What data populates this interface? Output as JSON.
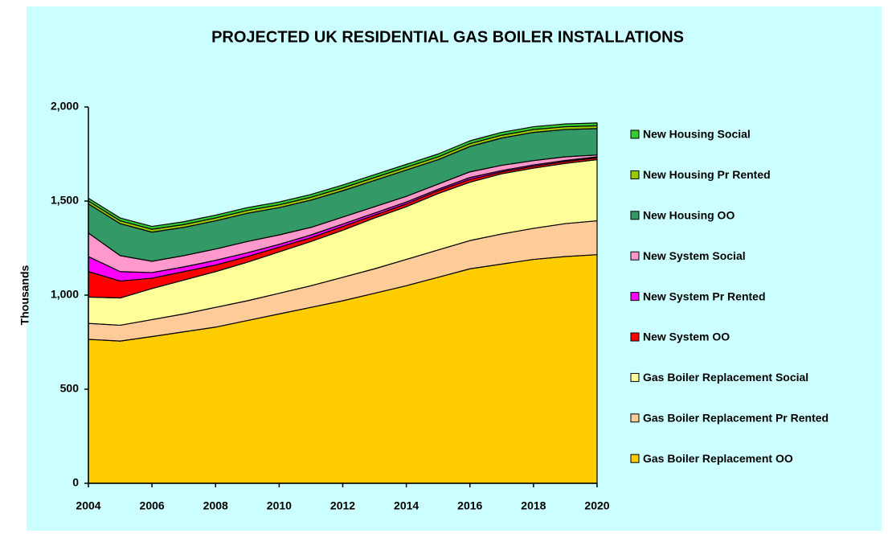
{
  "chart_data": {
    "type": "stacked_area",
    "title": "PROJECTED UK RESIDENTIAL GAS  BOILER INSTALLATIONS",
    "y_label": "Thousands",
    "x": [
      2004,
      2005,
      2006,
      2007,
      2008,
      2009,
      2010,
      2011,
      2012,
      2013,
      2014,
      2015,
      2016,
      2017,
      2018,
      2019,
      2020
    ],
    "xlim": [
      2004,
      2020
    ],
    "xticks": [
      2004,
      2006,
      2008,
      2010,
      2012,
      2014,
      2016,
      2018,
      2020
    ],
    "ylim": [
      0,
      2000
    ],
    "yticks": [
      0,
      500,
      {
        "value": 1000,
        "label": "1,000"
      },
      {
        "value": 1500,
        "label": "1,500"
      },
      {
        "value": 2000,
        "label": "2,000"
      }
    ],
    "grid": false,
    "legend": "right",
    "series": [
      {
        "name": "Gas Boiler Replacement OO",
        "color": "#FFCC00",
        "values": [
          765,
          756,
          780,
          805,
          830,
          865,
          900,
          935,
          970,
          1010,
          1050,
          1095,
          1140,
          1165,
          1190,
          1205,
          1215
        ]
      },
      {
        "name": "Gas Boiler Replacement Pr Rented",
        "color": "#FFCC99",
        "values": [
          85,
          84,
          90,
          95,
          105,
          105,
          110,
          115,
          125,
          130,
          140,
          145,
          150,
          160,
          165,
          175,
          180
        ]
      },
      {
        "name": "Gas Boiler Replacement Social",
        "color": "#FFFF99",
        "values": [
          140,
          145,
          165,
          180,
          190,
          205,
          220,
          235,
          250,
          270,
          280,
          300,
          310,
          320,
          320,
          320,
          325
        ]
      },
      {
        "name": "New System OO",
        "color": "#FF0000",
        "values": [
          135,
          90,
          55,
          45,
          35,
          30,
          25,
          20,
          20,
          15,
          15,
          15,
          15,
          10,
          10,
          10,
          10
        ]
      },
      {
        "name": "New System Pr Rented",
        "color": "#FF00FF",
        "values": [
          80,
          50,
          30,
          25,
          25,
          20,
          15,
          15,
          13,
          11,
          10,
          8,
          10,
          7,
          7,
          6,
          5
        ]
      },
      {
        "name": "New System Social",
        "color": "#FF99CC",
        "values": [
          125,
          85,
          60,
          60,
          60,
          60,
          50,
          40,
          37,
          34,
          30,
          27,
          30,
          28,
          23,
          19,
          10
        ]
      },
      {
        "name": "New Housing OO",
        "color": "#339966",
        "values": [
          155,
          170,
          155,
          150,
          150,
          150,
          145,
          145,
          140,
          140,
          140,
          130,
          135,
          145,
          150,
          145,
          140
        ]
      },
      {
        "name": "New Housing Pr Rented",
        "color": "#99CC00",
        "values": [
          15,
          15,
          15,
          15,
          15,
          15,
          15,
          15,
          15,
          15,
          15,
          15,
          15,
          15,
          15,
          15,
          15
        ]
      },
      {
        "name": "New Housing Social",
        "color": "#33CC33",
        "values": [
          15,
          15,
          15,
          15,
          15,
          15,
          15,
          15,
          15,
          15,
          15,
          15,
          15,
          15,
          15,
          15,
          15
        ]
      }
    ]
  }
}
